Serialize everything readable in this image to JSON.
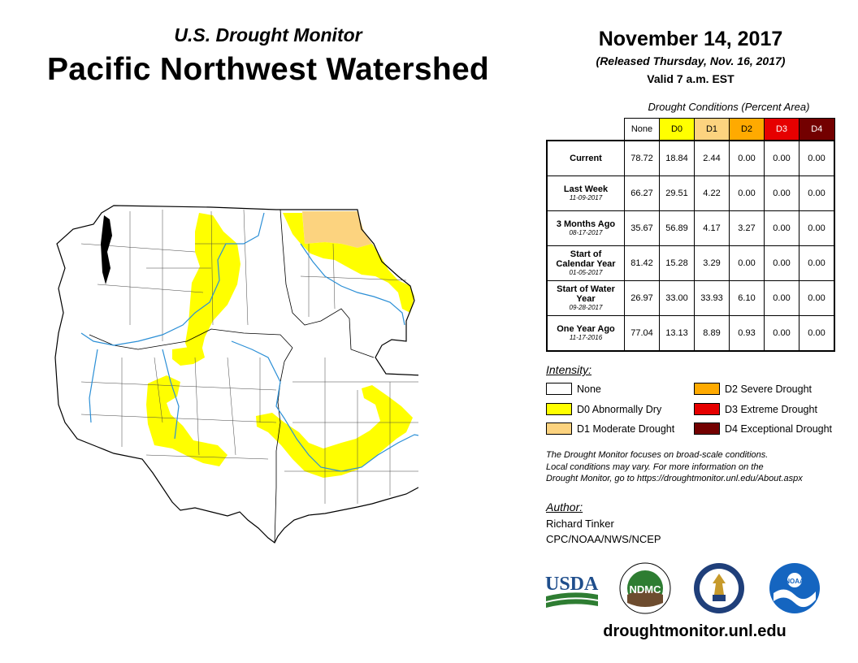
{
  "header": {
    "subtitle": "U.S. Drought Monitor",
    "title": "Pacific Northwest Watershed",
    "date": "November 14, 2017",
    "released": "(Released Thursday, Nov. 16, 2017)",
    "valid": "Valid 7 a.m. EST"
  },
  "table": {
    "title": "Drought Conditions (Percent Area)",
    "categories": [
      {
        "label": "None",
        "color": "#ffffff"
      },
      {
        "label": "D0",
        "color": "#ffff00"
      },
      {
        "label": "D1",
        "color": "#fcd37f"
      },
      {
        "label": "D2",
        "color": "#ffaa00"
      },
      {
        "label": "D3",
        "color": "#e60000"
      },
      {
        "label": "D4",
        "color": "#730000"
      }
    ],
    "rows": [
      {
        "label": "Current",
        "date": "",
        "values": [
          "78.72",
          "18.84",
          "2.44",
          "0.00",
          "0.00",
          "0.00"
        ]
      },
      {
        "label": "Last Week",
        "date": "11-09-2017",
        "values": [
          "66.27",
          "29.51",
          "4.22",
          "0.00",
          "0.00",
          "0.00"
        ]
      },
      {
        "label": "3 Months Ago",
        "date": "08-17-2017",
        "values": [
          "35.67",
          "56.89",
          "4.17",
          "3.27",
          "0.00",
          "0.00"
        ]
      },
      {
        "label": "Start of Calendar Year",
        "date": "01-05-2017",
        "values": [
          "81.42",
          "15.28",
          "3.29",
          "0.00",
          "0.00",
          "0.00"
        ]
      },
      {
        "label": "Start of Water Year",
        "date": "09-28-2017",
        "values": [
          "26.97",
          "33.00",
          "33.93",
          "6.10",
          "0.00",
          "0.00"
        ]
      },
      {
        "label": "One Year Ago",
        "date": "11-17-2016",
        "values": [
          "77.04",
          "13.13",
          "8.89",
          "0.93",
          "0.00",
          "0.00"
        ]
      }
    ]
  },
  "legend": {
    "heading": "Intensity:",
    "items": [
      {
        "label": "None",
        "color": "#ffffff"
      },
      {
        "label": "D0 Abnormally Dry",
        "color": "#ffff00"
      },
      {
        "label": "D1 Moderate Drought",
        "color": "#fcd37f"
      },
      {
        "label": "D2 Severe Drought",
        "color": "#ffaa00"
      },
      {
        "label": "D3 Extreme Drought",
        "color": "#e60000"
      },
      {
        "label": "D4 Exceptional Drought",
        "color": "#730000"
      }
    ]
  },
  "note": {
    "line1": "The Drought Monitor focuses on broad-scale conditions.",
    "line2": "Local conditions may vary. For more information on the",
    "line3": "Drought Monitor, go to https://droughtmonitor.unl.edu/About.aspx"
  },
  "author": {
    "heading": "Author:",
    "name": "Richard Tinker",
    "org": "CPC/NOAA/NWS/NCEP"
  },
  "logos": {
    "usda": "USDA",
    "ndmc": "NDMC",
    "noaa": "NOAA"
  },
  "footer": {
    "url": "droughtmonitor.unl.edu"
  }
}
